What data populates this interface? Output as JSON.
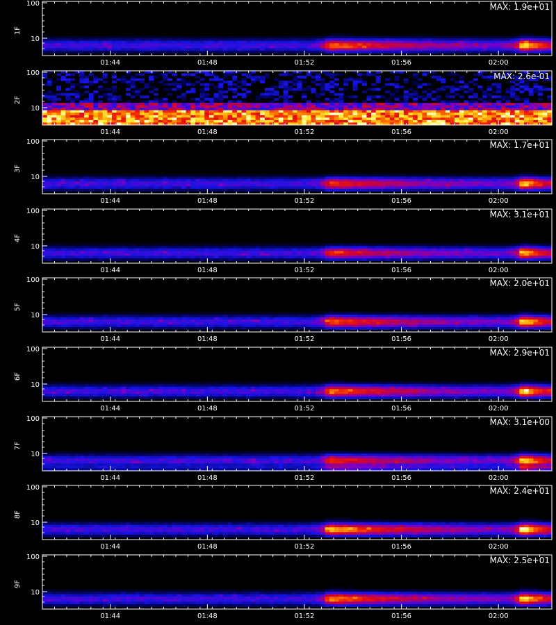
{
  "footer_text": "",
  "chart_data": [
    {
      "type": "heatmap",
      "panel_label": "1F",
      "max_label": "MAX: 1.9e+01",
      "y_ticks": [
        "100",
        "10"
      ],
      "x_ticks": [
        "01:44",
        "01:48",
        "01:52",
        "01:56",
        "02:00"
      ],
      "y_scale": "log",
      "band": "low",
      "events": [
        {
          "time": "01:53",
          "strength": 0.75
        },
        {
          "time": "02:01",
          "strength": 0.95
        }
      ]
    },
    {
      "type": "heatmap",
      "panel_label": "2F",
      "max_label": "MAX: 2.6e-01",
      "y_ticks": [
        "100",
        "10"
      ],
      "x_ticks": [
        "01:44",
        "01:48",
        "01:52",
        "01:56",
        "02:00"
      ],
      "y_scale": "log",
      "band": "noise",
      "events": []
    },
    {
      "type": "heatmap",
      "panel_label": "3F",
      "max_label": "MAX: 1.7e+01",
      "y_ticks": [
        "100",
        "10"
      ],
      "x_ticks": [
        "01:44",
        "01:48",
        "01:52",
        "01:56",
        "02:00"
      ],
      "y_scale": "log",
      "band": "low",
      "events": [
        {
          "time": "01:53",
          "strength": 0.6
        },
        {
          "time": "02:01",
          "strength": 0.9
        }
      ]
    },
    {
      "type": "heatmap",
      "panel_label": "4F",
      "max_label": "MAX: 3.1e+01",
      "y_ticks": [
        "100",
        "10"
      ],
      "x_ticks": [
        "01:44",
        "01:48",
        "01:52",
        "01:56",
        "02:00"
      ],
      "y_scale": "log",
      "band": "low",
      "events": [
        {
          "time": "01:53",
          "strength": 0.55
        },
        {
          "time": "02:01",
          "strength": 0.85
        }
      ]
    },
    {
      "type": "heatmap",
      "panel_label": "5F",
      "max_label": "MAX: 2.0e+01",
      "y_ticks": [
        "100",
        "10"
      ],
      "x_ticks": [
        "01:44",
        "01:48",
        "01:52",
        "01:56",
        "02:00"
      ],
      "y_scale": "log",
      "band": "low",
      "events": [
        {
          "time": "01:53",
          "strength": 0.7
        },
        {
          "time": "02:01",
          "strength": 0.95
        }
      ]
    },
    {
      "type": "heatmap",
      "panel_label": "6F",
      "max_label": "MAX: 2.9e+01",
      "y_ticks": [
        "100",
        "10"
      ],
      "x_ticks": [
        "01:44",
        "01:48",
        "01:52",
        "01:56",
        "02:00"
      ],
      "y_scale": "log",
      "band": "low",
      "events": [
        {
          "time": "01:53",
          "strength": 0.75
        },
        {
          "time": "02:01",
          "strength": 0.95
        }
      ]
    },
    {
      "type": "heatmap",
      "panel_label": "7F",
      "max_label": "MAX: 3.1e+00",
      "y_ticks": [
        "100",
        "10"
      ],
      "x_ticks": [
        "01:44",
        "01:48",
        "01:52",
        "01:56",
        "02:00"
      ],
      "y_scale": "log",
      "band": "double",
      "events": [
        {
          "time": "01:53",
          "strength": 0.6
        },
        {
          "time": "02:01",
          "strength": 0.95
        }
      ]
    },
    {
      "type": "heatmap",
      "panel_label": "8F",
      "max_label": "MAX: 2.4e+01",
      "y_ticks": [
        "100",
        "10"
      ],
      "x_ticks": [
        "01:44",
        "01:48",
        "01:52",
        "01:56",
        "02:00"
      ],
      "y_scale": "log",
      "band": "low",
      "events": [
        {
          "time": "01:53",
          "strength": 0.9
        },
        {
          "time": "02:01",
          "strength": 1.0
        }
      ]
    },
    {
      "type": "heatmap",
      "panel_label": "9F",
      "max_label": "MAX: 2.5e+01",
      "y_ticks": [
        "100",
        "10"
      ],
      "x_ticks": [
        "01:44",
        "01:48",
        "01:52",
        "01:56",
        "02:00"
      ],
      "y_scale": "log",
      "band": "low",
      "events": [
        {
          "time": "01:53",
          "strength": 0.8
        },
        {
          "time": "02:01",
          "strength": 0.95
        }
      ]
    }
  ]
}
